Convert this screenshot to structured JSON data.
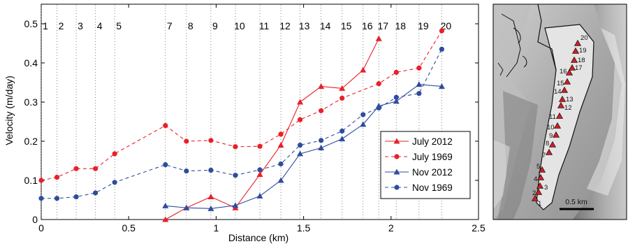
{
  "chart_data": {
    "type": "line",
    "xlabel": "Distance (km)",
    "ylabel": "Velocity (m/day)",
    "xlim": [
      0,
      2.5
    ],
    "ylim": [
      0,
      0.55
    ],
    "xticks": [
      "0",
      "0.5",
      "1",
      "1.5",
      "2",
      "2.5"
    ],
    "yticks": [
      "0",
      "0.1",
      "0.2",
      "0.3",
      "0.4",
      "0.5"
    ],
    "grid": false,
    "legend_position": "bottom-right",
    "stations": [
      {
        "label": "1",
        "x": 0.0
      },
      {
        "label": "2",
        "x": 0.09
      },
      {
        "label": "3",
        "x": 0.2
      },
      {
        "label": "4",
        "x": 0.31
      },
      {
        "label": "5",
        "x": 0.42
      },
      {
        "label": "7",
        "x": 0.71
      },
      {
        "label": "8",
        "x": 0.83
      },
      {
        "label": "9",
        "x": 0.97
      },
      {
        "label": "10",
        "x": 1.11
      },
      {
        "label": "11",
        "x": 1.25
      },
      {
        "label": "12",
        "x": 1.37
      },
      {
        "label": "13",
        "x": 1.48
      },
      {
        "label": "14",
        "x": 1.6
      },
      {
        "label": "15",
        "x": 1.72
      },
      {
        "label": "16",
        "x": 1.84
      },
      {
        "label": "17",
        "x": 1.93
      },
      {
        "label": "18",
        "x": 2.03
      },
      {
        "label": "19",
        "x": 2.16
      },
      {
        "label": "20",
        "x": 2.29
      }
    ],
    "series": [
      {
        "name": "July 2012",
        "color": "#e8202a",
        "dash": false,
        "marker": "triangle",
        "points": [
          [
            0.71,
            0.0
          ],
          [
            0.83,
            0.03
          ],
          [
            0.97,
            0.058
          ],
          [
            1.11,
            0.03
          ],
          [
            1.25,
            0.115
          ],
          [
            1.37,
            0.19
          ],
          [
            1.48,
            0.3
          ],
          [
            1.6,
            0.34
          ],
          [
            1.72,
            0.335
          ],
          [
            1.84,
            0.382
          ],
          [
            1.93,
            0.462
          ]
        ]
      },
      {
        "name": "July 1969",
        "color": "#e8202a",
        "dash": true,
        "marker": "circle",
        "points": [
          [
            0.0,
            0.1
          ],
          [
            0.09,
            0.108
          ],
          [
            0.2,
            0.13
          ],
          [
            0.31,
            0.13
          ],
          [
            0.42,
            0.168
          ],
          [
            0.71,
            0.24
          ],
          [
            0.83,
            0.2
          ],
          [
            0.97,
            0.202
          ],
          [
            1.11,
            0.186
          ],
          [
            1.25,
            0.187
          ],
          [
            1.37,
            0.218
          ],
          [
            1.48,
            0.255
          ],
          [
            1.6,
            0.278
          ],
          [
            1.72,
            0.31
          ],
          [
            1.93,
            0.347
          ],
          [
            2.03,
            0.376
          ],
          [
            2.16,
            0.387
          ],
          [
            2.29,
            0.482
          ]
        ]
      },
      {
        "name": "Nov 2012",
        "color": "#2f4d9e",
        "dash": false,
        "marker": "triangle",
        "points": [
          [
            0.71,
            0.035
          ],
          [
            0.83,
            0.03
          ],
          [
            0.97,
            0.028
          ],
          [
            1.11,
            0.036
          ],
          [
            1.25,
            0.06
          ],
          [
            1.37,
            0.1
          ],
          [
            1.48,
            0.168
          ],
          [
            1.6,
            0.183
          ],
          [
            1.72,
            0.206
          ],
          [
            1.84,
            0.243
          ],
          [
            1.93,
            0.29
          ],
          [
            2.03,
            0.302
          ],
          [
            2.16,
            0.345
          ],
          [
            2.29,
            0.34
          ]
        ]
      },
      {
        "name": "Nov 1969",
        "color": "#2f4d9e",
        "dash": true,
        "marker": "circle",
        "points": [
          [
            0.0,
            0.054
          ],
          [
            0.09,
            0.054
          ],
          [
            0.2,
            0.058
          ],
          [
            0.31,
            0.068
          ],
          [
            0.42,
            0.095
          ],
          [
            0.71,
            0.14
          ],
          [
            0.83,
            0.124
          ],
          [
            0.97,
            0.126
          ],
          [
            1.11,
            0.113
          ],
          [
            1.25,
            0.127
          ],
          [
            1.37,
            0.142
          ],
          [
            1.48,
            0.19
          ],
          [
            1.6,
            0.202
          ],
          [
            1.72,
            0.226
          ],
          [
            1.84,
            0.268
          ],
          [
            1.93,
            0.285
          ],
          [
            2.03,
            0.312
          ],
          [
            2.16,
            0.322
          ],
          [
            2.29,
            0.435
          ]
        ]
      }
    ]
  },
  "map": {
    "scale_label": "0.5 km",
    "marker_color": "#c8202a",
    "markers": [
      "1",
      "2",
      "3",
      "4",
      "5",
      "7",
      "8",
      "9",
      "10",
      "11",
      "12",
      "13",
      "14",
      "15",
      "16",
      "17",
      "18",
      "19",
      "20"
    ]
  }
}
